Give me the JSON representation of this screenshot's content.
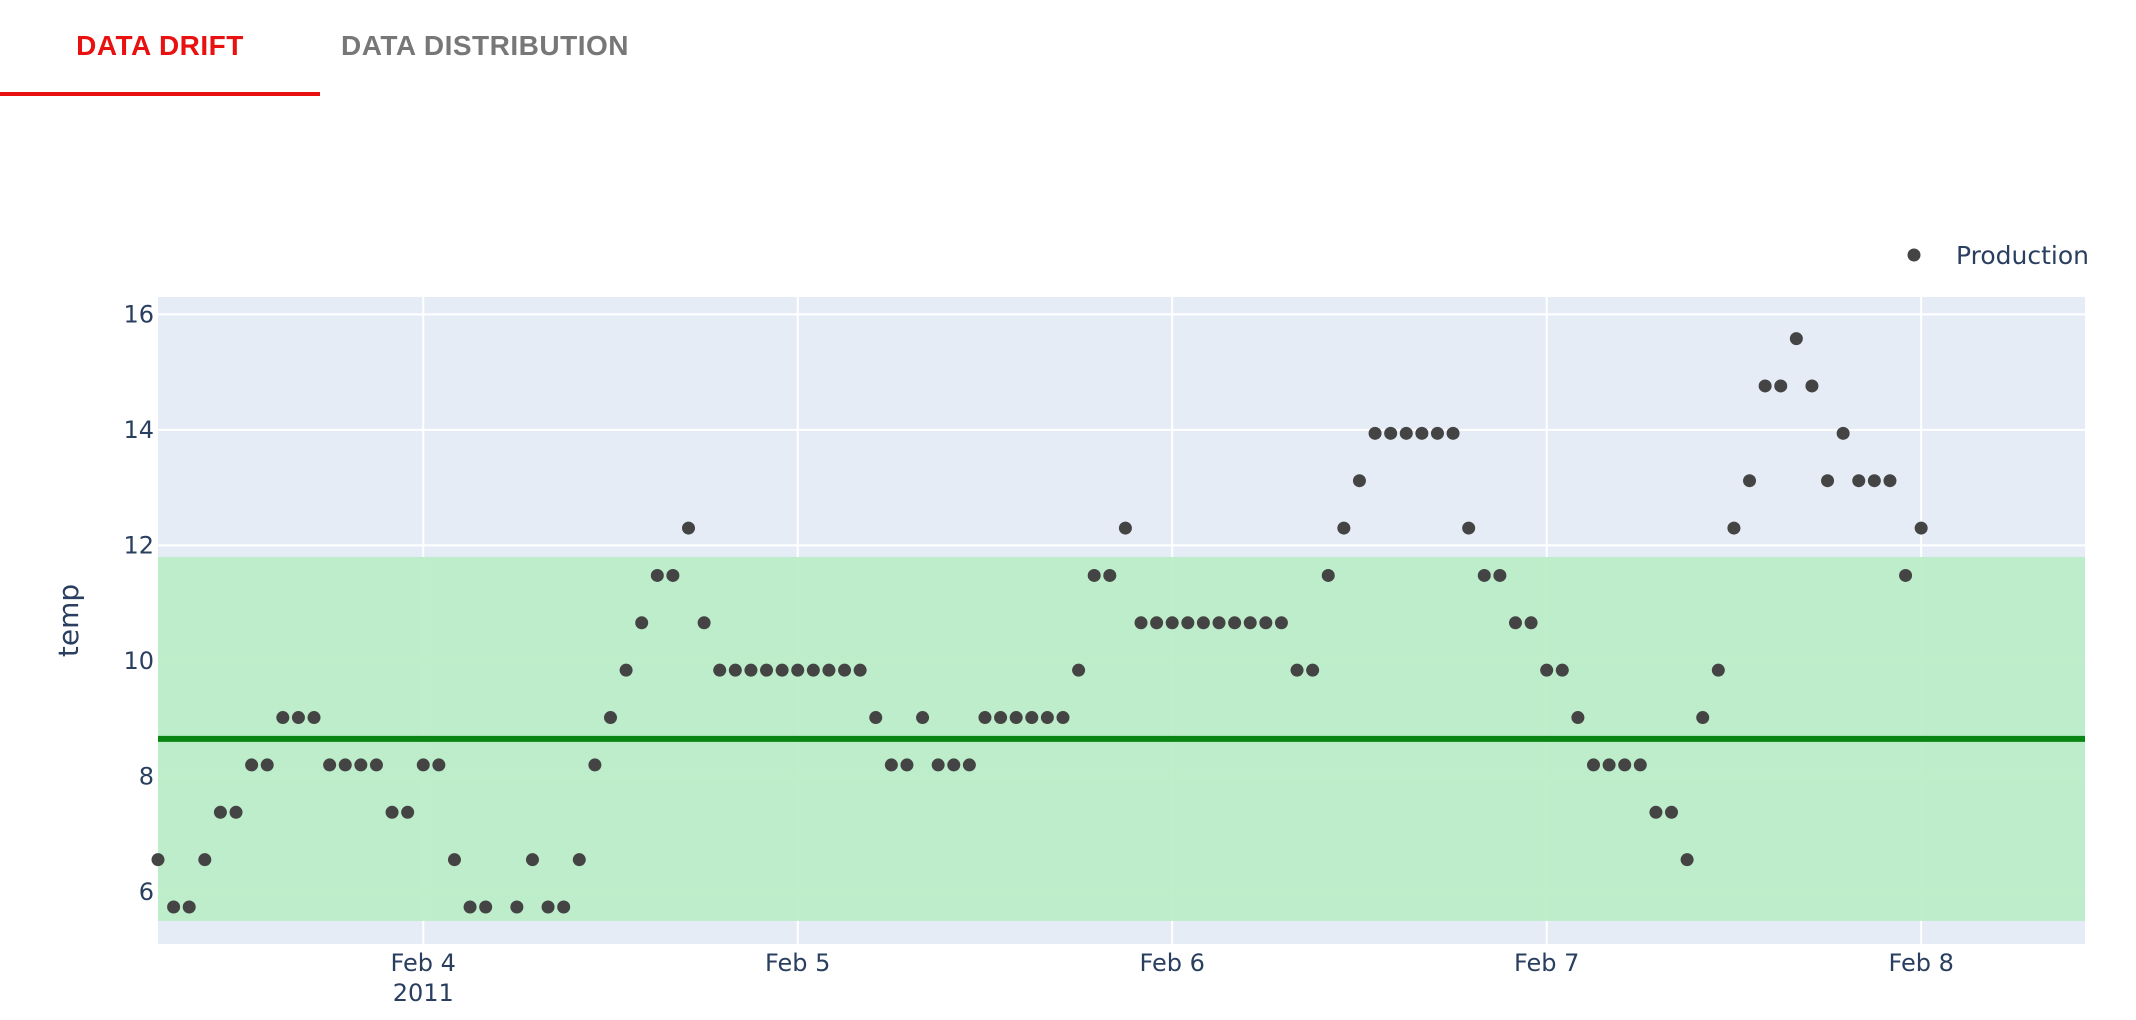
{
  "tabs": [
    {
      "label": "DATA DRIFT",
      "active": true
    },
    {
      "label": "DATA DISTRIBUTION",
      "active": false
    }
  ],
  "colors": {
    "accent": "#e8110f",
    "inactive_tab": "#777777",
    "plot_bg": "#e5ecf6",
    "band": "#bbedc7",
    "reference_line": "#0a8513",
    "marker": "#444444",
    "text": "#2a3f5f"
  },
  "chart_data": {
    "type": "scatter",
    "ylabel": "temp",
    "xlabel": "",
    "ylim": [
      5.1,
      16.3
    ],
    "xlim": [
      "2011-02-03 07:00",
      "2011-02-08 10:30"
    ],
    "y_ticks": [
      6,
      8,
      10,
      12,
      14,
      16
    ],
    "x_ticks": [
      {
        "date": "2011-02-04 00:00",
        "label": "Feb 4",
        "sublabel": "2011"
      },
      {
        "date": "2011-02-05 00:00",
        "label": "Feb 5",
        "sublabel": ""
      },
      {
        "date": "2011-02-06 00:00",
        "label": "Feb 6",
        "sublabel": ""
      },
      {
        "date": "2011-02-07 00:00",
        "label": "Feb 7",
        "sublabel": ""
      },
      {
        "date": "2011-02-08 00:00",
        "label": "Feb 8",
        "sublabel": ""
      }
    ],
    "grid": true,
    "legend_position": "top-right",
    "reference_band": [
      5.5,
      11.8
    ],
    "reference_line": 8.65,
    "series": [
      {
        "name": "Production",
        "start": "2011-02-03 07:00",
        "step_hours": 1,
        "values": [
          6.56,
          5.74,
          5.74,
          6.56,
          7.38,
          7.38,
          8.2,
          8.2,
          9.02,
          9.02,
          9.02,
          8.2,
          8.2,
          8.2,
          8.2,
          7.38,
          7.38,
          8.2,
          8.2,
          6.56,
          5.74,
          5.74,
          null,
          5.74,
          6.56,
          5.74,
          5.74,
          6.56,
          8.2,
          9.02,
          9.84,
          10.66,
          11.48,
          11.48,
          12.3,
          10.66,
          9.84,
          9.84,
          9.84,
          9.84,
          9.84,
          9.84,
          9.84,
          9.84,
          9.84,
          9.84,
          9.02,
          8.2,
          8.2,
          9.02,
          8.2,
          8.2,
          8.2,
          9.02,
          9.02,
          9.02,
          9.02,
          9.02,
          9.02,
          9.84,
          11.48,
          11.48,
          12.3,
          10.66,
          10.66,
          10.66,
          10.66,
          10.66,
          10.66,
          10.66,
          10.66,
          10.66,
          10.66,
          9.84,
          9.84,
          11.48,
          12.3,
          13.12,
          13.94,
          13.94,
          13.94,
          13.94,
          13.94,
          13.94,
          12.3,
          11.48,
          11.48,
          10.66,
          10.66,
          9.84,
          9.84,
          9.02,
          8.2,
          8.2,
          8.2,
          8.2,
          7.38,
          7.38,
          6.56,
          9.02,
          9.84,
          12.3,
          13.12,
          14.76,
          14.76,
          15.58,
          14.76,
          13.12,
          13.94,
          13.12,
          13.12,
          13.12,
          11.48,
          12.3
        ]
      }
    ]
  }
}
